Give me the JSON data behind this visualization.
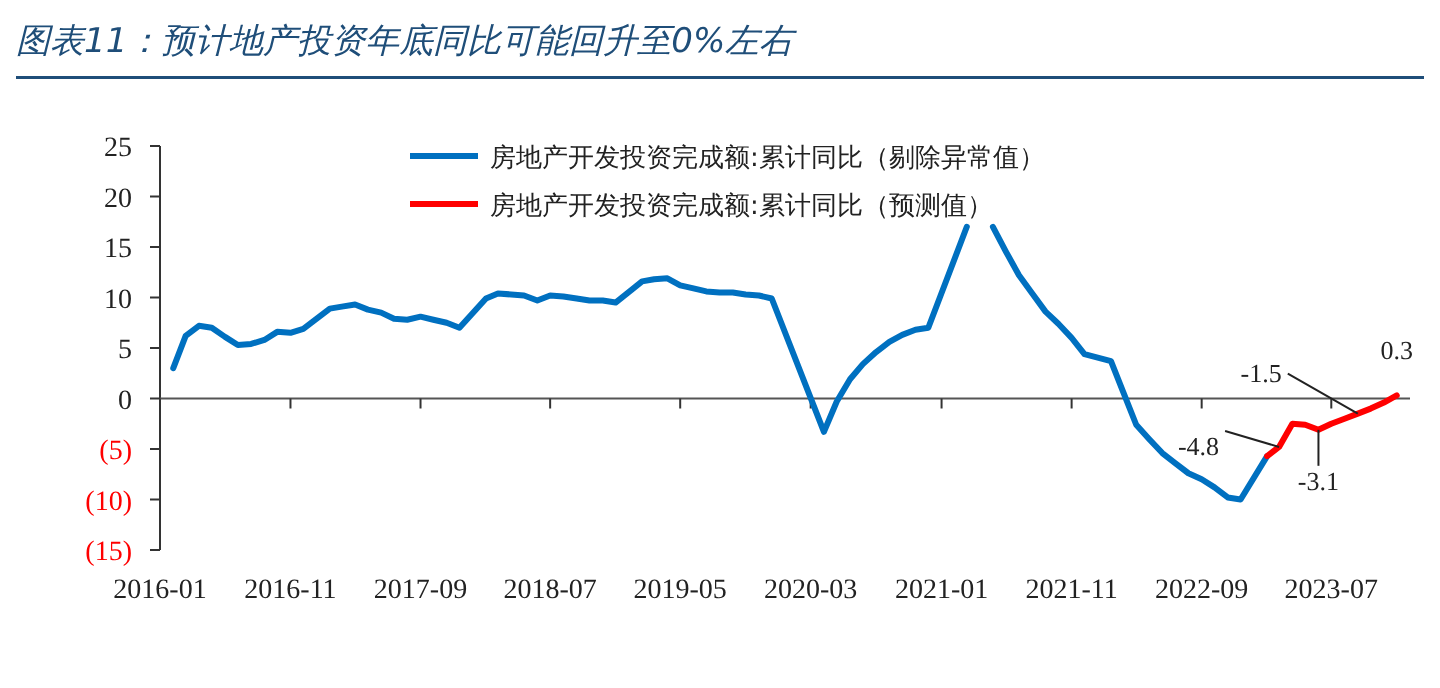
{
  "chart_data": {
    "type": "line",
    "title": "图表11：预计地产投资年底同比可能回升至0%左右",
    "series": [
      {
        "name": "房地产开发投资完成额:累计同比（剔除异常值）",
        "color": "#0070c0",
        "x": [
          "2016-02",
          "2016-03",
          "2016-04",
          "2016-05",
          "2016-06",
          "2016-07",
          "2016-08",
          "2016-09",
          "2016-10",
          "2016-11",
          "2016-12",
          "2017-02",
          "2017-03",
          "2017-04",
          "2017-05",
          "2017-06",
          "2017-07",
          "2017-08",
          "2017-09",
          "2017-10",
          "2017-11",
          "2017-12",
          "2018-02",
          "2018-03",
          "2018-04",
          "2018-05",
          "2018-06",
          "2018-07",
          "2018-08",
          "2018-09",
          "2018-10",
          "2018-11",
          "2018-12",
          "2019-02",
          "2019-03",
          "2019-04",
          "2019-05",
          "2019-06",
          "2019-07",
          "2019-08",
          "2019-09",
          "2019-10",
          "2019-11",
          "2019-12",
          "2020-04",
          "2020-05",
          "2020-06",
          "2020-07",
          "2020-08",
          "2020-09",
          "2020-10",
          "2020-11",
          "2020-12",
          "2021-03",
          "2021-04",
          "2021-05",
          "2021-06",
          "2021-07",
          "2021-08",
          "2021-09",
          "2021-10",
          "2021-11",
          "2021-12",
          "2022-02",
          "2022-03",
          "2022-04",
          "2022-05",
          "2022-06",
          "2022-07",
          "2022-08",
          "2022-09",
          "2022-10",
          "2022-11",
          "2022-12",
          "2023-02"
        ],
        "values": [
          3.0,
          6.2,
          7.2,
          7.0,
          6.1,
          5.3,
          5.4,
          5.8,
          6.6,
          6.5,
          6.9,
          8.9,
          9.1,
          9.3,
          8.8,
          8.5,
          7.9,
          7.8,
          8.1,
          7.8,
          7.5,
          7.0,
          9.9,
          10.4,
          10.3,
          10.2,
          9.7,
          10.2,
          10.1,
          9.9,
          9.7,
          9.7,
          9.5,
          11.6,
          11.8,
          11.9,
          11.2,
          10.9,
          10.6,
          10.5,
          10.5,
          10.3,
          10.2,
          9.9,
          -3.3,
          -0.3,
          1.9,
          3.4,
          4.6,
          5.6,
          6.3,
          6.8,
          7.0,
          17.0,
          null,
          17.0,
          14.5,
          12.2,
          10.4,
          8.6,
          7.4,
          6.0,
          4.4,
          3.7,
          0.7,
          -2.6,
          -4.0,
          -5.4,
          -6.4,
          -7.4,
          -8.0,
          -8.8,
          -9.8,
          -10.0,
          -5.7
        ]
      },
      {
        "name": "房地产开发投资完成额:累计同比（预测值）",
        "color": "#ff0000",
        "x": [
          "2023-02",
          "2023-03",
          "2023-04",
          "2023-05",
          "2023-06",
          "2023-07",
          "2023-08",
          "2023-09",
          "2023-10",
          "2023-11",
          "2023-12"
        ],
        "values": [
          -5.7,
          -4.8,
          -2.5,
          -2.6,
          -3.1,
          -2.5,
          -2.0,
          -1.5,
          -1.0,
          -0.4,
          0.3
        ]
      }
    ],
    "annotations": [
      {
        "text": "-4.8",
        "x": "2023-03",
        "y": -4.8
      },
      {
        "text": "-3.1",
        "x": "2023-06",
        "y": -3.1
      },
      {
        "text": "-1.5",
        "x": "2023-09",
        "y": -1.5
      },
      {
        "text": "0.3",
        "x": "2023-12",
        "y": 0.3
      }
    ],
    "xlim": [
      "2016-01",
      "2024-01"
    ],
    "xticks": [
      "2016-01",
      "2016-11",
      "2017-09",
      "2018-07",
      "2019-05",
      "2020-03",
      "2021-01",
      "2021-11",
      "2022-09",
      "2023-07"
    ],
    "ylim": [
      -15,
      25
    ],
    "yticks": [
      {
        "value": -15,
        "label": "(15)"
      },
      {
        "value": -10,
        "label": "(10)"
      },
      {
        "value": -5,
        "label": "(5)"
      },
      0,
      5,
      10,
      15,
      20,
      25
    ],
    "legend": "top",
    "line_style": "solid",
    "marker": "none"
  }
}
